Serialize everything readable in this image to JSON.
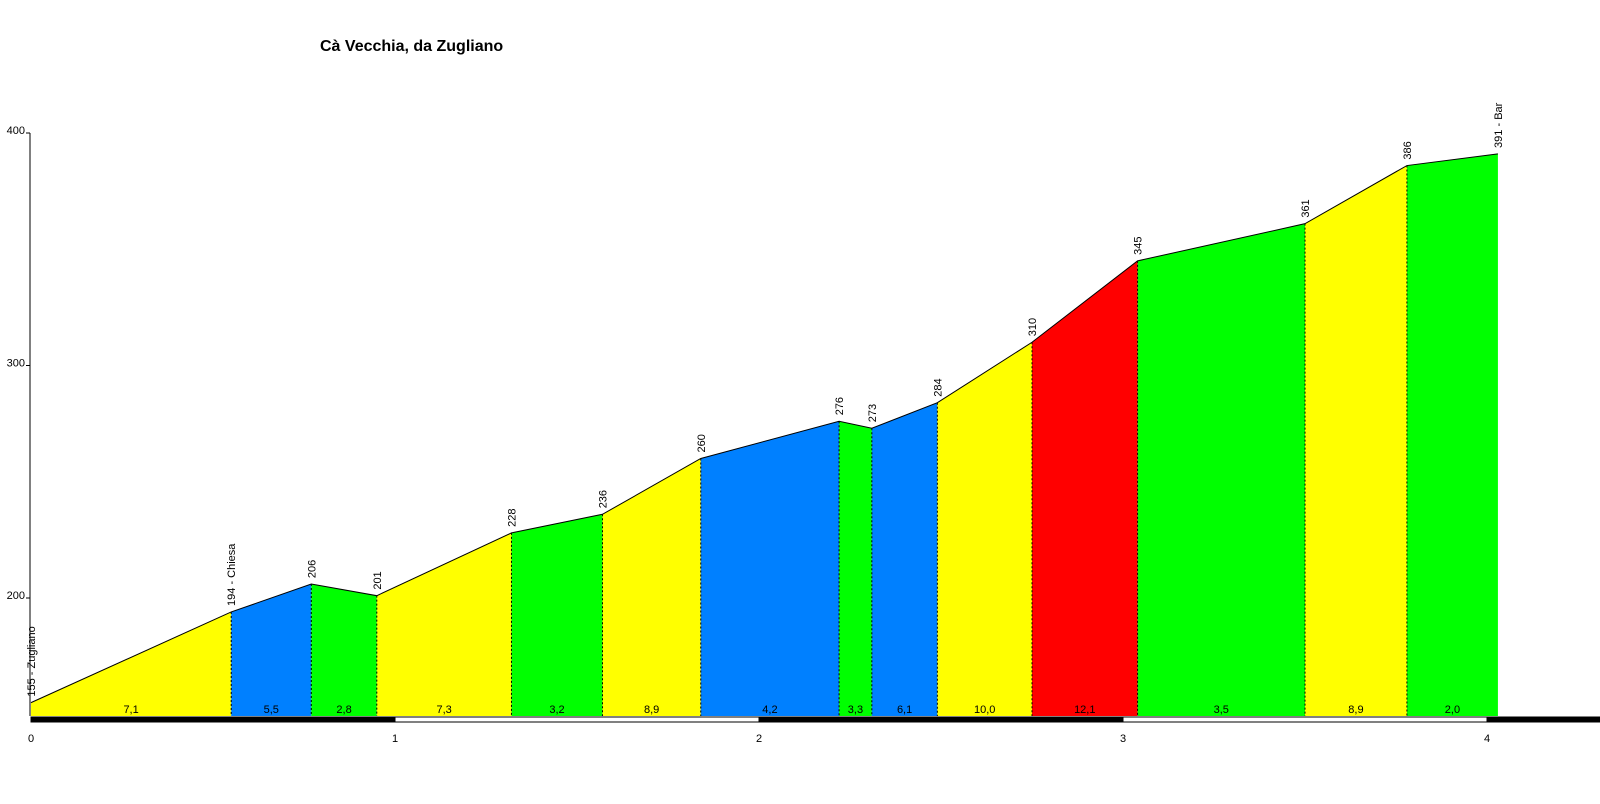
{
  "chart_data": {
    "type": "area",
    "title": "Cà Vecchia, da Zugliano",
    "xlabel": "",
    "ylabel": "",
    "xlim": [
      0,
      4.3
    ],
    "ylim": [
      150,
      400
    ],
    "x_ticks": [
      "0",
      "1",
      "2",
      "3",
      "4"
    ],
    "y_ticks": [
      "200",
      "300",
      "400"
    ],
    "points": [
      {
        "x": 0.0,
        "y": 155,
        "label": "155 - Zugliano"
      },
      {
        "x": 0.55,
        "y": 194,
        "label": "194 - Chiesa"
      },
      {
        "x": 0.77,
        "y": 206,
        "label": "206"
      },
      {
        "x": 0.95,
        "y": 201,
        "label": "201"
      },
      {
        "x": 1.32,
        "y": 228,
        "label": "228"
      },
      {
        "x": 1.57,
        "y": 236,
        "label": "236"
      },
      {
        "x": 1.84,
        "y": 260,
        "label": "260"
      },
      {
        "x": 2.22,
        "y": 276,
        "label": "276"
      },
      {
        "x": 2.31,
        "y": 273,
        "label": "273"
      },
      {
        "x": 2.49,
        "y": 284,
        "label": "284"
      },
      {
        "x": 2.75,
        "y": 310,
        "label": "310"
      },
      {
        "x": 3.04,
        "y": 345,
        "label": "345"
      },
      {
        "x": 3.5,
        "y": 361,
        "label": "361"
      },
      {
        "x": 3.78,
        "y": 386,
        "label": "386"
      },
      {
        "x": 4.03,
        "y": 391,
        "label": "391 - Bar"
      }
    ],
    "segments": [
      {
        "grade": "7,1",
        "color": "#ffff00"
      },
      {
        "grade": "5,5",
        "color": "#0080ff"
      },
      {
        "grade": "2,8",
        "color": "#00ff00"
      },
      {
        "grade": "7,3",
        "color": "#ffff00"
      },
      {
        "grade": "3,2",
        "color": "#00ff00"
      },
      {
        "grade": "8,9",
        "color": "#ffff00"
      },
      {
        "grade": "4,2",
        "color": "#0080ff"
      },
      {
        "grade": "3,3",
        "color": "#00ff00"
      },
      {
        "grade": "6,1",
        "color": "#0080ff"
      },
      {
        "grade": "10,0",
        "color": "#ffff00"
      },
      {
        "grade": "12,1",
        "color": "#ff0000"
      },
      {
        "grade": "3,5",
        "color": "#00ff00"
      },
      {
        "grade": "8,9",
        "color": "#ffff00"
      },
      {
        "grade": "2,0",
        "color": "#00ff00"
      }
    ]
  }
}
